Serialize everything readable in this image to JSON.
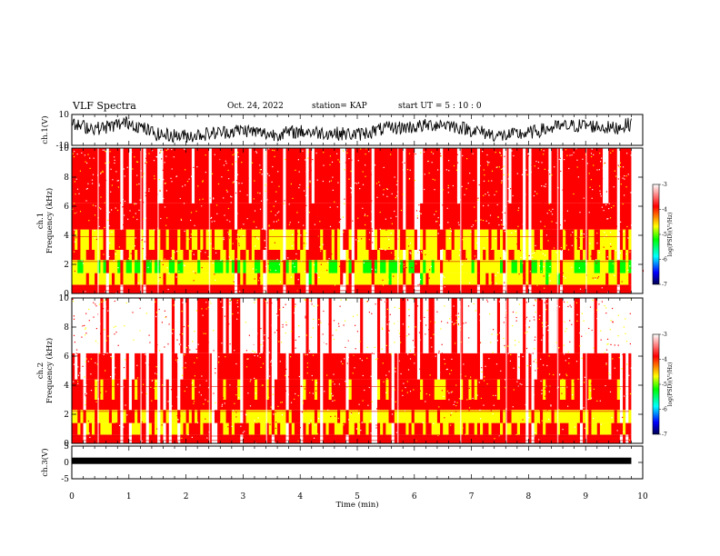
{
  "header": {
    "title": "VLF Spectra",
    "date": "Oct. 24, 2022",
    "station": "station= KAP",
    "start": "start  UT =   5 : 10 : 0"
  },
  "colors": {
    "spectrum_scale": [
      "#000050",
      "#0000ff",
      "#00ffff",
      "#00ff00",
      "#ffff00",
      "#ff0000",
      "#ffffff"
    ],
    "trace": "#000000"
  },
  "chart_data": [
    {
      "type": "line",
      "name": "ch1-waveform",
      "ylabel": "ch.1(V)",
      "ylim": [
        -10,
        10
      ],
      "yticks": [
        "10",
        "-10"
      ],
      "x": [
        0,
        0.5,
        1,
        1.5,
        2,
        2.5,
        3,
        3.5,
        4,
        4.5,
        5,
        5.5,
        6,
        6.5,
        7,
        7.5,
        8,
        8.5,
        9,
        9.5,
        9.8
      ],
      "y": [
        3,
        1,
        5,
        -3,
        -4,
        -2,
        0,
        -3,
        -1,
        -2,
        -3,
        1,
        2,
        4,
        0,
        -4,
        -2,
        2,
        3,
        1,
        4
      ]
    },
    {
      "type": "heatmap",
      "name": "ch1-spectrogram",
      "ylabel": "ch.1\nFrequency (kHz)",
      "xlim": [
        0,
        10
      ],
      "ylim": [
        0,
        10
      ],
      "yticks": [
        "0",
        "2",
        "4",
        "6",
        "8",
        "10"
      ],
      "colorbar": {
        "label": "log(PSD)(V²/Hz)",
        "range": [
          -7,
          -3
        ],
        "ticks": [
          "-3",
          "-4",
          "-5",
          "-6",
          "-7"
        ]
      }
    },
    {
      "type": "heatmap",
      "name": "ch2-spectrogram",
      "ylabel": "ch.2\nFrequency (kHz)",
      "xlim": [
        0,
        10
      ],
      "ylim": [
        0,
        10
      ],
      "yticks": [
        "0",
        "2",
        "4",
        "6",
        "8",
        "10"
      ],
      "colorbar": {
        "label": "log(PSD)(V²/Hz)",
        "range": [
          -7,
          -3
        ],
        "ticks": [
          "-3",
          "-4",
          "-5",
          "-6",
          "-7"
        ]
      }
    },
    {
      "type": "line",
      "name": "ch3-waveform",
      "ylabel": "ch.3(V)",
      "ylim": [
        -5,
        5
      ],
      "yticks": [
        "5",
        "0",
        "-5"
      ],
      "x": [
        0,
        9.8
      ],
      "y": [
        0.5,
        0.5
      ]
    }
  ],
  "x_axis": {
    "label": "Time (min)",
    "range": [
      0,
      10
    ],
    "ticks": [
      "0",
      "1",
      "2",
      "3",
      "4",
      "5",
      "6",
      "7",
      "8",
      "9",
      "10"
    ]
  }
}
